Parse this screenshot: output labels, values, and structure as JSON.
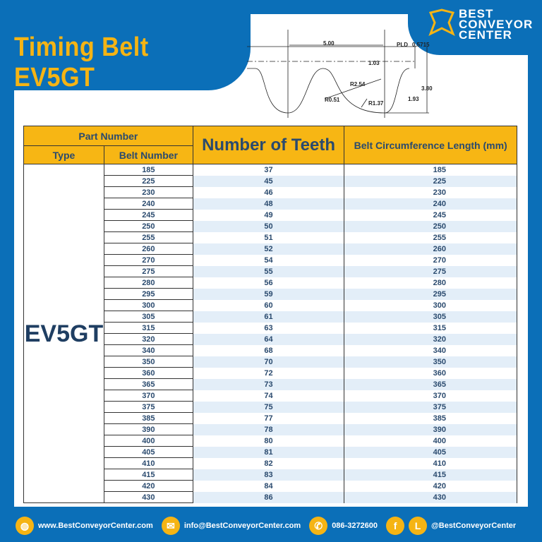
{
  "title": "Timing Belt EV5GT",
  "logo": {
    "line1": "BEST",
    "line2": "CONVEYOR",
    "line3": "CENTER"
  },
  "diagram": {
    "pitch": "5.00",
    "pld_label": "PLD",
    "pld": "0.5715",
    "d1": "1.03",
    "r1": "R2.54",
    "r2": "R0.51",
    "r3": "R1.37",
    "h1": "1.93",
    "h2": "3.80"
  },
  "table": {
    "header_part": "Part Number",
    "header_type": "Type",
    "header_belt": "Belt Number",
    "header_teeth": "Number of Teeth",
    "header_length": "Belt Circumference Length (mm)",
    "type": "EV5GT",
    "rows": [
      {
        "belt": "185",
        "teeth": "37",
        "length": "185"
      },
      {
        "belt": "225",
        "teeth": "45",
        "length": "225"
      },
      {
        "belt": "230",
        "teeth": "46",
        "length": "230"
      },
      {
        "belt": "240",
        "teeth": "48",
        "length": "240"
      },
      {
        "belt": "245",
        "teeth": "49",
        "length": "245"
      },
      {
        "belt": "250",
        "teeth": "50",
        "length": "250"
      },
      {
        "belt": "255",
        "teeth": "51",
        "length": "255"
      },
      {
        "belt": "260",
        "teeth": "52",
        "length": "260"
      },
      {
        "belt": "270",
        "teeth": "54",
        "length": "270"
      },
      {
        "belt": "275",
        "teeth": "55",
        "length": "275"
      },
      {
        "belt": "280",
        "teeth": "56",
        "length": "280"
      },
      {
        "belt": "295",
        "teeth": "59",
        "length": "295"
      },
      {
        "belt": "300",
        "teeth": "60",
        "length": "300"
      },
      {
        "belt": "305",
        "teeth": "61",
        "length": "305"
      },
      {
        "belt": "315",
        "teeth": "63",
        "length": "315"
      },
      {
        "belt": "320",
        "teeth": "64",
        "length": "320"
      },
      {
        "belt": "340",
        "teeth": "68",
        "length": "340"
      },
      {
        "belt": "350",
        "teeth": "70",
        "length": "350"
      },
      {
        "belt": "360",
        "teeth": "72",
        "length": "360"
      },
      {
        "belt": "365",
        "teeth": "73",
        "length": "365"
      },
      {
        "belt": "370",
        "teeth": "74",
        "length": "370"
      },
      {
        "belt": "375",
        "teeth": "75",
        "length": "375"
      },
      {
        "belt": "385",
        "teeth": "77",
        "length": "385"
      },
      {
        "belt": "390",
        "teeth": "78",
        "length": "390"
      },
      {
        "belt": "400",
        "teeth": "80",
        "length": "400"
      },
      {
        "belt": "405",
        "teeth": "81",
        "length": "405"
      },
      {
        "belt": "410",
        "teeth": "82",
        "length": "410"
      },
      {
        "belt": "415",
        "teeth": "83",
        "length": "415"
      },
      {
        "belt": "420",
        "teeth": "84",
        "length": "420"
      },
      {
        "belt": "430",
        "teeth": "86",
        "length": "430"
      }
    ]
  },
  "footer": {
    "website": "www.BestConveyorCenter.com",
    "email": "info@BestConveyorCenter.com",
    "phone": "086-3272600",
    "social": "@BestConveyorCenter",
    "line_letter": "L",
    "facebook_letter": "f"
  },
  "colors": {
    "brand_blue": "#0b6fb8",
    "accent_yellow": "#f5b414"
  }
}
